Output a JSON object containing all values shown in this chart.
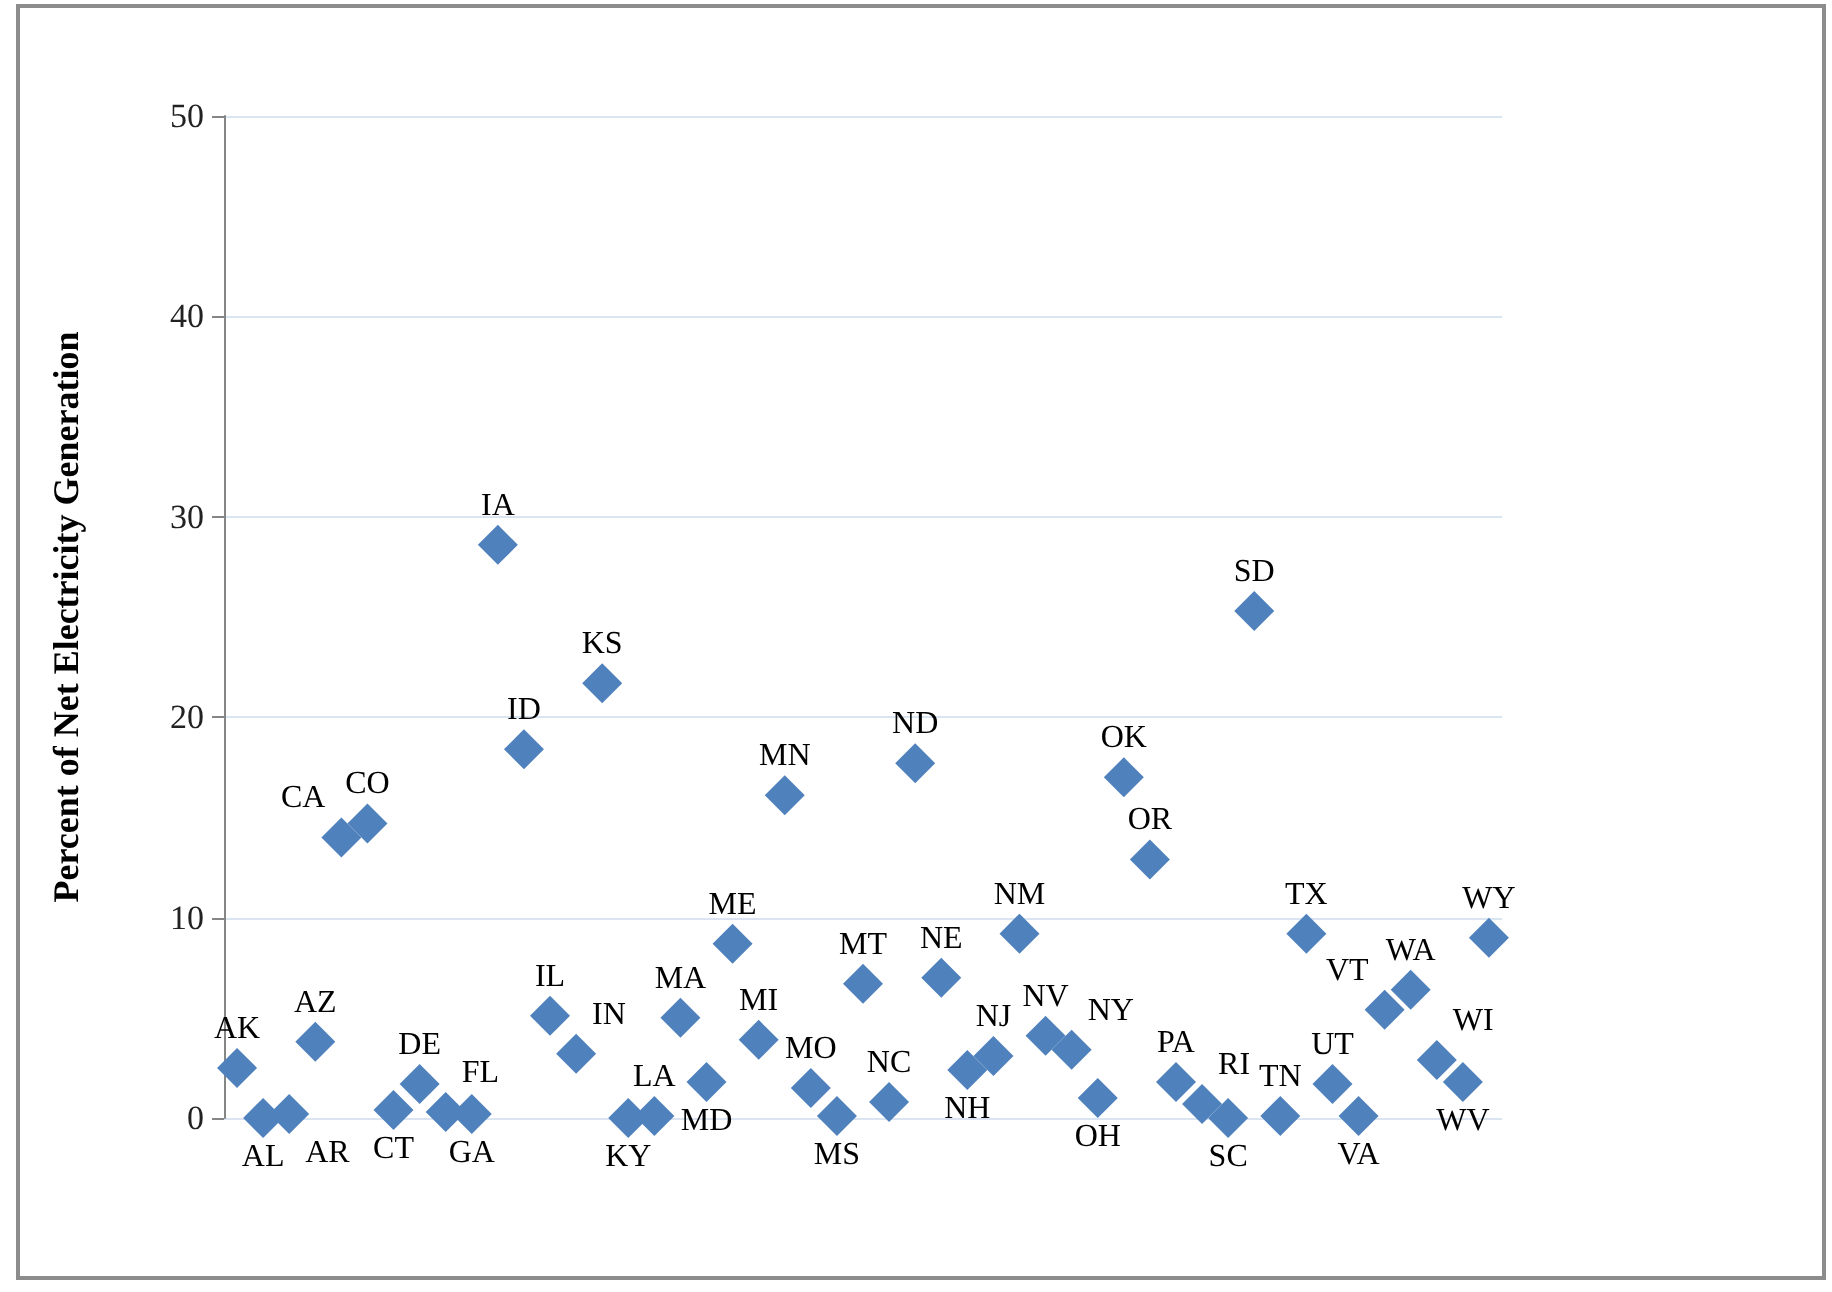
{
  "chart_data": {
    "type": "scatter",
    "ylabel": "Percent of Net Electricity Generation",
    "categories": [
      null,
      null,
      null,
      null,
      null,
      null,
      null,
      null,
      null,
      null,
      null,
      null,
      null,
      null,
      null,
      null,
      null,
      null,
      null,
      null,
      null,
      null,
      null,
      null,
      null,
      null,
      null,
      null,
      null,
      null,
      null,
      null,
      null,
      null,
      null,
      null,
      null,
      null,
      null,
      null,
      null,
      null,
      null,
      null,
      null,
      null,
      null,
      null,
      null
    ],
    "values": [
      2.5,
      0.0,
      0.2,
      3.8,
      14.0,
      14.7,
      0.4,
      1.7,
      0.3,
      0.2,
      28.6,
      18.4,
      5.1,
      3.2,
      21.7,
      0.0,
      0.1,
      5.0,
      1.8,
      8.7,
      3.9,
      16.1,
      1.5,
      0.1,
      6.7,
      0.8,
      17.7,
      7.0,
      2.4,
      3.1,
      9.2,
      4.1,
      3.4,
      1.0,
      17.0,
      12.9,
      1.8,
      0.7,
      0.0,
      25.3,
      0.1,
      9.2,
      1.7,
      0.1,
      5.4,
      6.4,
      2.9,
      1.8,
      9.0
    ],
    "value_labels": [
      "AK",
      "AL",
      "AR",
      "AZ",
      "CA",
      "CO",
      "CT",
      "DE",
      "FL",
      "GA",
      "IA",
      "ID",
      "IL",
      "IN",
      "KS",
      "KY",
      "LA",
      "MA",
      "MD",
      "ME",
      "MI",
      "MN",
      "MO",
      "MS",
      "MT",
      "NC",
      "ND",
      "NE",
      "NH",
      "NJ",
      "NM",
      "NV",
      "NY",
      "OH",
      "OK",
      "OR",
      "PA",
      "RI",
      "SC",
      "SD",
      "TN",
      "TX",
      "UT",
      "VA",
      "VT",
      "WA",
      "WI",
      "WV",
      "WY"
    ],
    "color": "#4f81bd",
    "marker": "diamond",
    "ylim": [
      0,
      50
    ],
    "yticks": [
      0,
      10,
      20,
      30,
      40,
      50
    ],
    "grid": "y",
    "tick_labels": "y"
  }
}
